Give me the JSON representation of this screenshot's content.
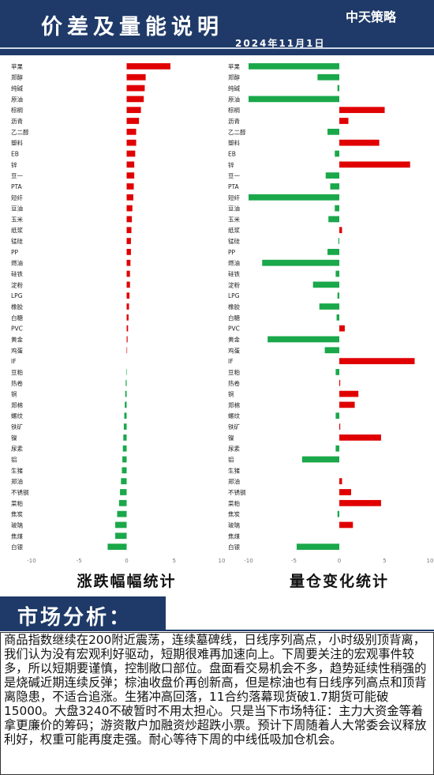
{
  "header": {
    "title": "价差及量能说明",
    "date": "2024年11月1日",
    "logo": "中天策略"
  },
  "chart_data": [
    {
      "type": "bar",
      "orientation": "horizontal",
      "title": "涨跌幅幅统计",
      "categories": [
        "苹果",
        "郑醇",
        "纯碱",
        "原油",
        "棕榈",
        "沥青",
        "乙二醇",
        "塑料",
        "EB",
        "锌",
        "豆一",
        "PTA",
        "短纤",
        "豆油",
        "玉米",
        "纸浆",
        "锰硅",
        "PP",
        "燃油",
        "硅铁",
        "淀粉",
        "LPG",
        "橡胶",
        "白糖",
        "PVC",
        "黄金",
        "鸡蛋",
        "IF",
        "豆粕",
        "热卷",
        "铜",
        "郑棉",
        "螺纹",
        "铁矿",
        "镍",
        "尿素",
        "铝",
        "生猪",
        "郑油",
        "不锈钢",
        "菜粕",
        "焦炭",
        "玻璃",
        "焦煤",
        "白银"
      ],
      "values": [
        4.6,
        2.0,
        1.9,
        1.8,
        1.5,
        1.3,
        1.0,
        1.0,
        0.9,
        0.8,
        0.8,
        0.75,
        0.7,
        0.6,
        0.55,
        0.5,
        0.45,
        0.45,
        0.4,
        0.35,
        0.35,
        0.3,
        0.25,
        0.2,
        0.15,
        0.1,
        0.05,
        0,
        -0.05,
        -0.1,
        -0.15,
        -0.2,
        -0.25,
        -0.3,
        -0.35,
        -0.4,
        -0.45,
        -0.5,
        -0.6,
        -0.7,
        -0.8,
        -1.0,
        -1.2,
        -1.2,
        -2.0
      ],
      "positive_color": "#e00000",
      "negative_color": "#1aa84a",
      "xlim": [
        -10,
        10
      ],
      "xticks": [
        -10,
        -5,
        0,
        5,
        10
      ]
    },
    {
      "type": "bar",
      "orientation": "horizontal",
      "title": "量仓变化统计",
      "categories": [
        "苹果",
        "郑醇",
        "纯碱",
        "原油",
        "棕榈",
        "沥青",
        "乙二醇",
        "塑料",
        "EB",
        "锌",
        "豆一",
        "PTA",
        "短纤",
        "豆油",
        "玉米",
        "纸浆",
        "锰硅",
        "PP",
        "燃油",
        "硅铁",
        "淀粉",
        "LPG",
        "橡胶",
        "白糖",
        "PVC",
        "黄金",
        "鸡蛋",
        "IF",
        "豆粕",
        "热卷",
        "铜",
        "郑棉",
        "螺纹",
        "铁矿",
        "镍",
        "尿素",
        "铝",
        "生猪",
        "郑油",
        "不锈钢",
        "菜粕",
        "焦炭",
        "玻璃",
        "焦煤",
        "白银"
      ],
      "values": [
        -10,
        -2.4,
        -0.2,
        -10,
        5.0,
        1.0,
        -1.3,
        4.4,
        -0.5,
        7.8,
        -1.5,
        -1.0,
        -10,
        -0.5,
        -1.2,
        0.3,
        -0.1,
        -1.3,
        -8.5,
        -0.4,
        -2.9,
        -0.2,
        -2.2,
        -0.3,
        0.6,
        -7.9,
        -1.6,
        8.3,
        -0.4,
        0.1,
        2.1,
        1.7,
        -0.4,
        0.1,
        4.6,
        -0.4,
        -4.1,
        0,
        0.3,
        1.3,
        4.6,
        -0.2,
        1.5,
        0,
        -4.7
      ],
      "positive_color": "#e00000",
      "negative_color": "#1aa84a",
      "xlim": [
        -10,
        10
      ],
      "xticks": [
        -10,
        -5,
        0,
        5,
        10
      ]
    }
  ],
  "analysis": {
    "title": "市场分析：",
    "text": "商品指数继续在200附近震荡，连续墓碑线，日线序列高点，小时级别顶背离，我们认为没有宏观利好驱动，短期很难再加速向上。下周要关注的宏观事件较多，所以短期要谨慎，控制敞口部位。盘面看交易机会不多，趋势延续性稍强的是烧碱近期连续反弹；棕油收盘价再创新高，但是棕油也有日线序列高点和顶背离隐患，不适合追涨。生猪冲高回落，11合约落幕现货破1.7期货可能破15000。大盘3240不破暂时不用太担心。只是当下市场特征：主力大资金等着拿更廉价的筹码；游资散户加融资炒超跌小票。预计下周随着人大常委会议释放利好，权重可能再度走强。耐心等待下周的中线低吸加仓机会。"
  }
}
